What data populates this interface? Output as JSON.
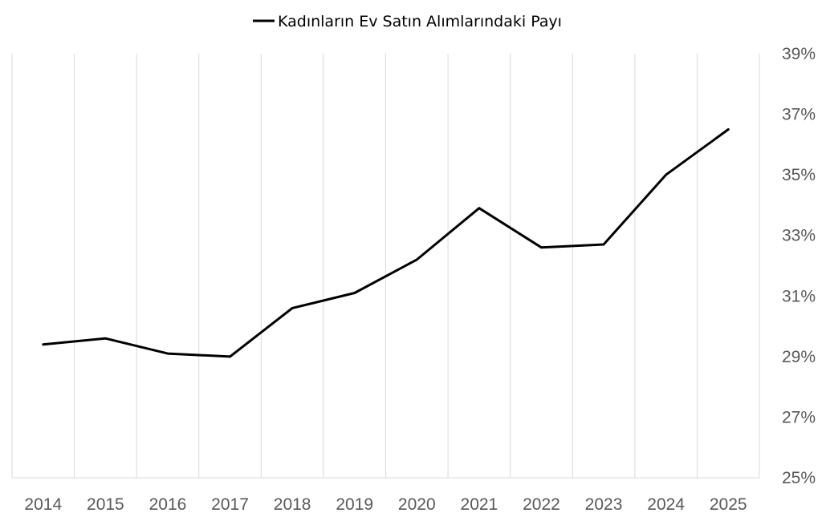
{
  "chart_data": {
    "type": "line",
    "title": "",
    "xlabel": "",
    "ylabel": "",
    "legend_position": "top",
    "grid": "vertical",
    "x_categories": [
      "2014",
      "2015",
      "2016",
      "2017",
      "2018",
      "2019",
      "2020",
      "2021",
      "2022",
      "2023",
      "2024",
      "2025"
    ],
    "series": [
      {
        "name": "Kadınların Ev Satın Alımlarındaki Payı",
        "values": [
          29.4,
          29.6,
          29.1,
          29.0,
          30.6,
          31.1,
          32.2,
          33.9,
          32.6,
          32.7,
          35.0,
          36.5
        ],
        "color": "#000000"
      }
    ],
    "y_axis": {
      "position": "right",
      "min": 25,
      "max": 39,
      "ticks": [
        25,
        27,
        29,
        31,
        33,
        35,
        37,
        39
      ],
      "tick_labels": [
        "25%",
        "27%",
        "29%",
        "31%",
        "33%",
        "35%",
        "37%",
        "39%"
      ]
    },
    "gridline_color": "#d9d9d9",
    "label_color": "#595959"
  }
}
